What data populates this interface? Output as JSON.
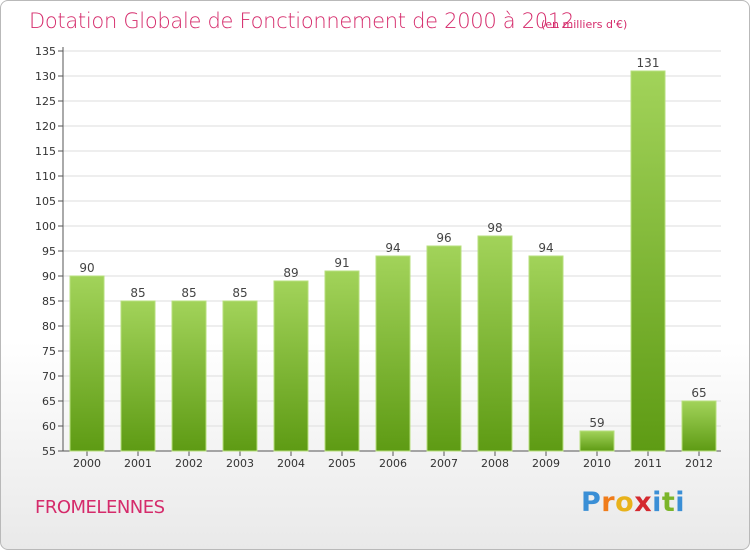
{
  "header": {
    "title": "Dotation Globale de Fonctionnement de 2000 à 2012",
    "subtitle": "(en milliers d'€)"
  },
  "footer": {
    "town": "FROMELENNES",
    "brand_letters": [
      "P",
      "r",
      "o",
      "x",
      "i",
      "t",
      "i"
    ],
    "brand_colors": [
      "#3a8fd6",
      "#f07c1a",
      "#e8b21a",
      "#d4292f",
      "#3a8fd6",
      "#7bb52a",
      "#3a8fd6"
    ]
  },
  "colors": {
    "accent": "#d52b6b",
    "bar_light": "#a2d35a",
    "bar_dark": "#5e9b14",
    "grid": "#dddddd"
  },
  "chart_data": {
    "type": "bar",
    "categories": [
      "2000",
      "2001",
      "2002",
      "2003",
      "2004",
      "2005",
      "2006",
      "2007",
      "2008",
      "2009",
      "2010",
      "2011",
      "2012"
    ],
    "values": [
      90,
      85,
      85,
      85,
      89,
      91,
      94,
      96,
      98,
      94,
      59,
      131,
      65
    ],
    "ylim": [
      55,
      135
    ],
    "yticks": [
      55,
      60,
      65,
      70,
      75,
      80,
      85,
      90,
      95,
      100,
      105,
      110,
      115,
      120,
      125,
      130,
      135
    ],
    "grid": true,
    "legend": "none"
  }
}
